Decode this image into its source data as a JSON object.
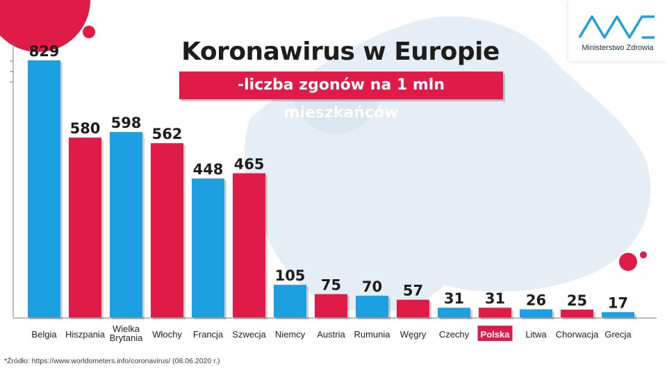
{
  "title": "Koronawirus w Europie",
  "subtitle": "-liczba zgonów na 1 mln mieszkańców",
  "logo": {
    "name": "Ministerstwo Zdrowia",
    "icon": "ministry-of-health-logo-icon"
  },
  "source": "*Źródło: https://www.worldometers.info/coronavirus/ (08.06.2020 r.)",
  "colors": {
    "blue": "#1da0e2",
    "red": "#e11b48",
    "highlight_bg": "#e11b48",
    "highlight_text": "#ffffff"
  },
  "chart_data": {
    "type": "bar",
    "title": "Koronawirus w Europie",
    "subtitle": "-liczba zgonów na 1 mln mieszkańców",
    "categories": [
      [
        "Belgia"
      ],
      [
        "Hiszpania"
      ],
      [
        "Wielka",
        "Brytania"
      ],
      [
        "Włochy"
      ],
      [
        "Francja"
      ],
      [
        "Szwecja"
      ],
      [
        "Niemcy"
      ],
      [
        "Austria"
      ],
      [
        "Rumunia"
      ],
      [
        "Węgry"
      ],
      [
        "Czechy"
      ],
      [
        "Polska"
      ],
      [
        "Litwa"
      ],
      [
        "Chorwacja"
      ],
      [
        "Grecja"
      ]
    ],
    "values": [
      829,
      580,
      598,
      562,
      448,
      465,
      105,
      75,
      70,
      57,
      31,
      31,
      26,
      25,
      17
    ],
    "bar_colors": [
      "blue",
      "red",
      "blue",
      "red",
      "blue",
      "red",
      "blue",
      "red",
      "blue",
      "red",
      "blue",
      "red",
      "blue",
      "red",
      "blue"
    ],
    "highlight_category": "Polska",
    "ylim": [
      0,
      829
    ],
    "grid": false
  }
}
